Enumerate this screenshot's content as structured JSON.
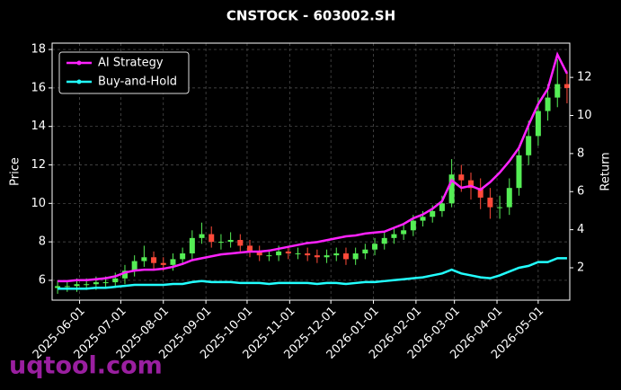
{
  "chart_data": {
    "type": "candlestick",
    "title": "CNSTOCK - 603002.SH",
    "ylabel": "Price",
    "y2label": "Return",
    "watermark": "uqtool.com",
    "up_color": "#55ee55",
    "down_color": "#ff4a3a",
    "grid": true,
    "legend": "upper left",
    "xlim": [
      "2025-05-12",
      "2026-05-24"
    ],
    "xticks": [
      "2025-06-01",
      "2025-07-01",
      "2025-08-01",
      "2025-09-01",
      "2025-10-01",
      "2025-11-01",
      "2025-12-01",
      "2026-01-01",
      "2026-02-01",
      "2026-03-01",
      "2026-04-01",
      "2026-05-01"
    ],
    "ylim": [
      4.97,
      18.33
    ],
    "yticks": [
      6,
      8,
      10,
      12,
      14,
      16,
      18
    ],
    "y2lim": [
      0.3,
      13.8
    ],
    "y2ticks": [
      2,
      4,
      6,
      8,
      10,
      12
    ],
    "x": [
      "2025-05-16",
      "2025-05-23",
      "2025-05-30",
      "2025-06-06",
      "2025-06-13",
      "2025-06-20",
      "2025-06-27",
      "2025-07-04",
      "2025-07-11",
      "2025-07-18",
      "2025-07-25",
      "2025-08-01",
      "2025-08-08",
      "2025-08-15",
      "2025-08-22",
      "2025-08-29",
      "2025-09-05",
      "2025-09-12",
      "2025-09-19",
      "2025-09-26",
      "2025-10-03",
      "2025-10-10",
      "2025-10-17",
      "2025-10-24",
      "2025-10-31",
      "2025-11-07",
      "2025-11-14",
      "2025-11-21",
      "2025-11-28",
      "2025-12-05",
      "2025-12-12",
      "2025-12-19",
      "2025-12-26",
      "2026-01-02",
      "2026-01-09",
      "2026-01-16",
      "2026-01-23",
      "2026-01-30",
      "2026-02-06",
      "2026-02-13",
      "2026-02-20",
      "2026-02-27",
      "2026-03-06",
      "2026-03-13",
      "2026-03-20",
      "2026-03-27",
      "2026-04-03",
      "2026-04-10",
      "2026-04-17",
      "2026-04-24",
      "2026-05-01",
      "2026-05-08",
      "2026-05-15",
      "2026-05-22"
    ],
    "open": [
      5.6,
      5.7,
      5.7,
      5.8,
      5.8,
      5.9,
      5.9,
      6.1,
      6.5,
      7.0,
      7.2,
      6.9,
      6.8,
      7.1,
      7.4,
      8.2,
      8.4,
      8.0,
      8.0,
      8.1,
      7.8,
      7.5,
      7.3,
      7.3,
      7.5,
      7.4,
      7.4,
      7.3,
      7.2,
      7.3,
      7.4,
      7.1,
      7.4,
      7.6,
      7.9,
      8.2,
      8.4,
      8.6,
      9.1,
      9.3,
      9.6,
      10.0,
      11.5,
      11.2,
      10.8,
      10.3,
      9.8,
      9.8,
      10.8,
      12.5,
      13.5,
      14.8,
      15.5,
      16.2
    ],
    "high": [
      6.0,
      6.0,
      6.1,
      6.1,
      6.2,
      6.2,
      6.4,
      6.8,
      7.3,
      7.8,
      7.5,
      7.2,
      7.4,
      7.7,
      8.6,
      9.0,
      8.8,
      8.4,
      8.5,
      8.4,
      8.1,
      7.8,
      7.6,
      7.8,
      7.8,
      7.7,
      7.7,
      7.6,
      7.6,
      7.7,
      7.7,
      7.7,
      7.9,
      8.2,
      8.5,
      8.7,
      8.9,
      9.4,
      9.6,
      9.9,
      10.4,
      12.3,
      12.0,
      11.6,
      11.3,
      10.8,
      10.4,
      11.3,
      13.0,
      14.3,
      15.5,
      16.2,
      17.5,
      16.9
    ],
    "low": [
      5.3,
      5.4,
      5.4,
      5.5,
      5.5,
      5.6,
      5.6,
      5.8,
      6.2,
      6.7,
      6.6,
      6.5,
      6.5,
      6.8,
      7.1,
      7.9,
      7.7,
      7.6,
      7.7,
      7.5,
      7.2,
      7.0,
      7.0,
      7.0,
      7.1,
      7.1,
      7.0,
      6.9,
      6.9,
      7.0,
      6.8,
      6.8,
      7.1,
      7.3,
      7.6,
      7.9,
      8.1,
      8.3,
      8.8,
      9.0,
      9.3,
      9.8,
      10.6,
      10.2,
      9.7,
      9.2,
      9.2,
      9.4,
      10.4,
      12.0,
      13.0,
      14.3,
      15.0,
      15.2
    ],
    "close": [
      5.7,
      5.7,
      5.8,
      5.8,
      5.9,
      5.9,
      6.1,
      6.5,
      7.0,
      7.2,
      6.9,
      6.8,
      7.1,
      7.4,
      8.2,
      8.4,
      8.0,
      8.0,
      8.1,
      7.8,
      7.5,
      7.3,
      7.3,
      7.5,
      7.4,
      7.4,
      7.3,
      7.2,
      7.3,
      7.4,
      7.1,
      7.4,
      7.6,
      7.9,
      8.2,
      8.4,
      8.6,
      9.1,
      9.3,
      9.6,
      10.0,
      11.5,
      11.2,
      10.8,
      10.3,
      9.8,
      9.8,
      10.8,
      12.5,
      13.5,
      14.8,
      15.5,
      16.2,
      16.0
    ],
    "series": [
      {
        "name": "AI Strategy",
        "color": "#ff22ff",
        "axis": "y2",
        "values": [
          1.3,
          1.3,
          1.35,
          1.35,
          1.4,
          1.45,
          1.55,
          1.75,
          1.85,
          1.9,
          1.9,
          1.95,
          2.05,
          2.2,
          2.4,
          2.5,
          2.6,
          2.7,
          2.75,
          2.8,
          2.85,
          2.85,
          2.9,
          3.0,
          3.1,
          3.2,
          3.3,
          3.35,
          3.45,
          3.55,
          3.65,
          3.7,
          3.8,
          3.85,
          3.9,
          4.1,
          4.3,
          4.6,
          4.8,
          5.1,
          5.5,
          6.6,
          6.2,
          6.3,
          6.1,
          6.5,
          7.0,
          7.6,
          8.3,
          9.5,
          10.6,
          11.4,
          13.2,
          12.2
        ]
      },
      {
        "name": "Buy-and-Hold",
        "color": "#22ffff",
        "axis": "y2",
        "values": [
          0.9,
          0.9,
          0.9,
          0.9,
          0.95,
          0.95,
          1.0,
          1.05,
          1.1,
          1.1,
          1.1,
          1.1,
          1.15,
          1.15,
          1.25,
          1.3,
          1.25,
          1.25,
          1.25,
          1.2,
          1.2,
          1.2,
          1.15,
          1.2,
          1.2,
          1.2,
          1.2,
          1.15,
          1.2,
          1.2,
          1.15,
          1.2,
          1.25,
          1.25,
          1.3,
          1.35,
          1.4,
          1.45,
          1.5,
          1.6,
          1.7,
          1.9,
          1.7,
          1.6,
          1.5,
          1.45,
          1.6,
          1.8,
          2.0,
          2.1,
          2.3,
          2.3,
          2.5,
          2.5
        ]
      }
    ]
  }
}
